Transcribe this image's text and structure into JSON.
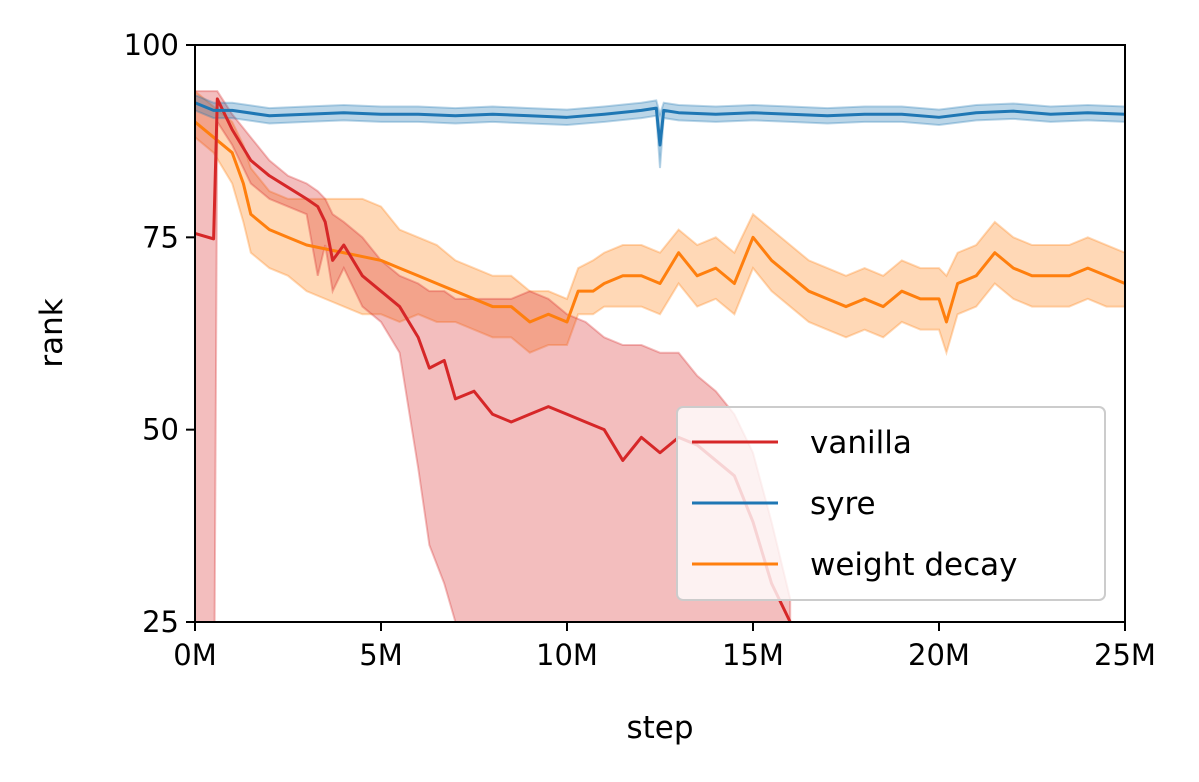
{
  "chart_data": {
    "type": "line",
    "xlabel": "step",
    "ylabel": "rank",
    "xlim": [
      0,
      25
    ],
    "ylim": [
      25,
      100
    ],
    "x_ticks": [
      0,
      5,
      10,
      15,
      20,
      25
    ],
    "x_tick_labels": [
      "0M",
      "5M",
      "10M",
      "15M",
      "20M",
      "25M"
    ],
    "y_ticks": [
      25,
      50,
      75,
      100
    ],
    "y_tick_labels": [
      "25",
      "50",
      "75",
      "100"
    ],
    "grid": false,
    "legend_position": "lower-right",
    "x_unit_note": "x values in millions of steps",
    "series": [
      {
        "name": "vanilla",
        "color": "#d62728",
        "x": [
          0,
          0.5,
          0.6,
          1,
          1.5,
          2,
          2.5,
          3,
          3.3,
          3.5,
          3.7,
          4,
          4.5,
          5,
          5.5,
          6,
          6.3,
          6.7,
          7,
          7.5,
          8,
          8.5,
          9,
          9.5,
          10,
          10.5,
          11,
          11.5,
          12,
          12.5,
          13,
          13.5,
          14,
          14.5,
          15,
          15.5,
          16
        ],
        "y": [
          75.5,
          74.8,
          93,
          89,
          85,
          83,
          81.5,
          80,
          79,
          77,
          72,
          74,
          70,
          68,
          66,
          62,
          58,
          59,
          54,
          55,
          52,
          51,
          52,
          53,
          52,
          51,
          50,
          46,
          49,
          47,
          49,
          48,
          46,
          44,
          38,
          30,
          25
        ],
        "upper": [
          94,
          94,
          94,
          91,
          88,
          85,
          83,
          82,
          81,
          80,
          78,
          77,
          75,
          72,
          70,
          69,
          68,
          68,
          67,
          67,
          67,
          67,
          68,
          67,
          65,
          64,
          62,
          61,
          61,
          60,
          60,
          57,
          55,
          52,
          47,
          38,
          28
        ],
        "lower": [
          0,
          0,
          90,
          87,
          82,
          80,
          79,
          78,
          70,
          74,
          68,
          71,
          66,
          64,
          60,
          45,
          35,
          30,
          25,
          22,
          20,
          20,
          20,
          20,
          20,
          20,
          20,
          20,
          20,
          20,
          20,
          20,
          20,
          20,
          20,
          20,
          20
        ]
      },
      {
        "name": "syre",
        "color": "#1f77b4",
        "x": [
          0,
          0.5,
          1,
          2,
          3,
          4,
          5,
          6,
          7,
          8,
          9,
          10,
          11,
          12,
          12.4,
          12.5,
          12.6,
          13,
          14,
          15,
          16,
          17,
          18,
          19,
          20,
          21,
          22,
          23,
          24,
          25
        ],
        "y": [
          92.5,
          91.5,
          91.5,
          90.8,
          91,
          91.2,
          91,
          91,
          90.8,
          91,
          90.8,
          90.6,
          91,
          91.5,
          91.8,
          87,
          91.5,
          91.2,
          91,
          91.2,
          91,
          90.8,
          91,
          91,
          90.6,
          91.2,
          91.4,
          91,
          91.2,
          91
        ],
        "upper": [
          93.5,
          92.5,
          92.5,
          91.8,
          92,
          92.2,
          92,
          92,
          91.8,
          92,
          91.8,
          91.6,
          92,
          92.5,
          92.8,
          91,
          92.5,
          92.2,
          92,
          92.2,
          92,
          91.8,
          92,
          92,
          91.6,
          92.2,
          92.4,
          92,
          92.2,
          92
        ],
        "lower": [
          91.5,
          90.5,
          90.5,
          89.8,
          90,
          90.2,
          90,
          90,
          89.8,
          90,
          89.8,
          89.6,
          90,
          90.5,
          90.8,
          84,
          90.5,
          90.2,
          90,
          90.2,
          90,
          89.8,
          90,
          90,
          89.6,
          90.2,
          90.4,
          90,
          90.2,
          90
        ]
      },
      {
        "name": "weight decay",
        "color": "#ff7f0e",
        "x": [
          0,
          0.5,
          1,
          1.3,
          1.5,
          2,
          2.5,
          3,
          3.5,
          4,
          4.5,
          5,
          5.5,
          6,
          6.5,
          7,
          7.5,
          8,
          8.5,
          9,
          9.5,
          10,
          10.3,
          10.7,
          11,
          11.5,
          12,
          12.5,
          13,
          13.5,
          14,
          14.5,
          15,
          15.5,
          16,
          16.5,
          17,
          17.5,
          18,
          18.5,
          19,
          19.5,
          20,
          20.2,
          20.5,
          21,
          21.5,
          22,
          22.5,
          23,
          23.5,
          24,
          24.5,
          25
        ],
        "y": [
          90,
          88,
          86,
          82,
          78,
          76,
          75,
          74,
          73.5,
          73,
          72.5,
          72,
          71,
          70,
          69,
          68,
          67,
          66,
          66,
          64,
          65,
          64,
          68,
          68,
          69,
          70,
          70,
          69,
          73,
          70,
          71,
          69,
          75,
          72,
          70,
          68,
          67,
          66,
          67,
          66,
          68,
          67,
          67,
          64,
          69,
          70,
          73,
          71,
          70,
          70,
          70,
          71,
          70,
          69
        ],
        "upper": [
          94,
          92,
          90,
          87,
          84,
          81,
          80,
          80,
          80,
          80,
          80,
          79,
          76,
          75,
          74,
          72,
          71,
          70,
          70,
          68,
          68,
          67,
          71,
          72,
          73,
          74,
          74,
          73,
          76,
          74,
          75,
          73,
          78,
          76,
          74,
          72,
          71,
          70,
          71,
          70,
          72,
          71,
          71,
          70,
          73,
          74,
          77,
          75,
          74,
          74,
          74,
          75,
          74,
          73
        ],
        "lower": [
          88,
          86,
          82,
          77,
          73,
          71,
          70,
          68,
          67,
          66,
          65,
          65,
          64,
          65,
          64,
          64,
          63,
          62,
          62,
          60,
          61,
          61,
          65,
          65,
          66,
          66,
          66,
          65,
          69,
          66,
          67,
          65,
          71,
          68,
          66,
          64,
          63,
          62,
          63,
          62,
          64,
          63,
          63,
          60,
          65,
          66,
          69,
          67,
          66,
          66,
          66,
          67,
          66,
          66
        ]
      }
    ]
  }
}
